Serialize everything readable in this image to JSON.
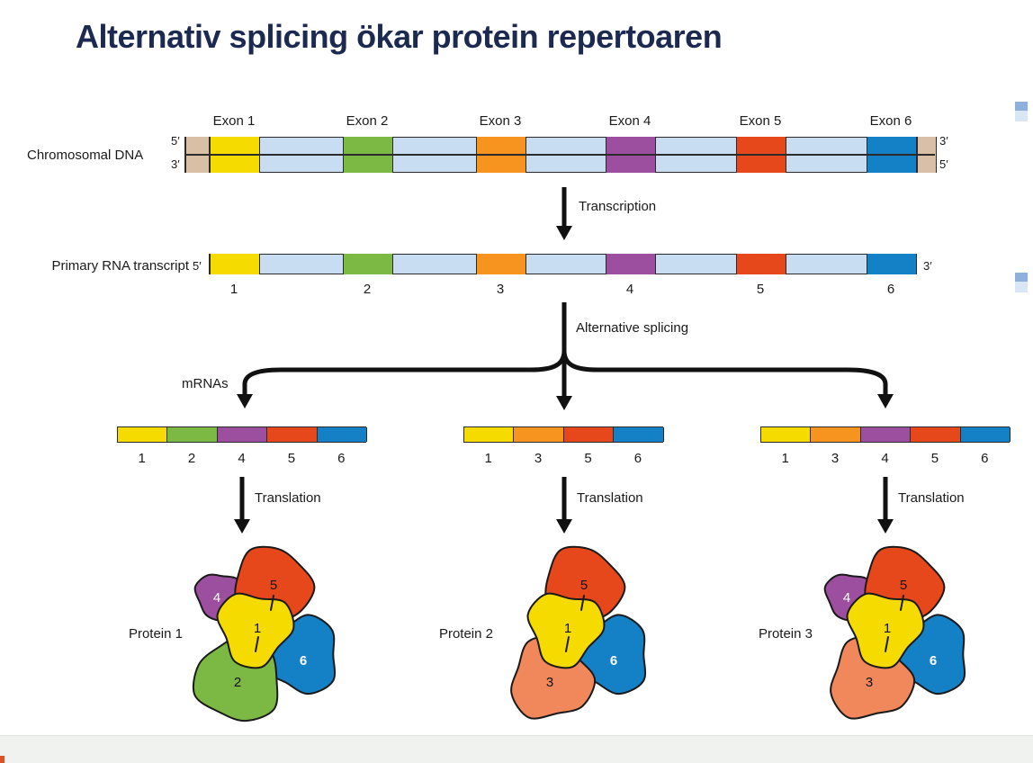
{
  "title": "Alternativ splicing ökar protein repertoaren",
  "colors": {
    "exon_1": "#F6DB00",
    "exon_2": "#7CB844",
    "exon_3": "#F79420",
    "exon_4": "#9C4F9E",
    "exon_5": "#E6481C",
    "exon_6": "#1480C6",
    "protein_3": "#F0885C",
    "intron": "#C9DDF2",
    "dna_end": "#D9C0A5",
    "title": "#1C2A52"
  },
  "dna": {
    "label": "Chromosomal DNA",
    "five_prime_left": "5′",
    "three_prime_left": "3′",
    "three_prime_right": "3′",
    "five_prime_right": "5′",
    "exon_labels": [
      "Exon 1",
      "Exon 2",
      "Exon 3",
      "Exon 4",
      "Exon 5",
      "Exon 6"
    ]
  },
  "transcription": {
    "label": "Transcription"
  },
  "rna": {
    "label": "Primary RNA transcript",
    "five_prime": "5′",
    "three_prime": "3′",
    "exon_numbers": [
      "1",
      "2",
      "3",
      "4",
      "5",
      "6"
    ]
  },
  "splicing": {
    "label": "Alternative splicing"
  },
  "mrnas": {
    "label": "mRNAs",
    "variants": [
      {
        "exons": [
          "1",
          "2",
          "4",
          "5",
          "6"
        ]
      },
      {
        "exons": [
          "1",
          "3",
          "5",
          "6"
        ]
      },
      {
        "exons": [
          "1",
          "3",
          "4",
          "5",
          "6"
        ]
      }
    ]
  },
  "translation": {
    "label": "Translation"
  },
  "proteins": [
    {
      "label": "Protein 1",
      "subunits": [
        "1",
        "2",
        "4",
        "5",
        "6"
      ]
    },
    {
      "label": "Protein 2",
      "subunits": [
        "1",
        "3",
        "5",
        "6"
      ]
    },
    {
      "label": "Protein 3",
      "subunits": [
        "1",
        "3",
        "4",
        "5",
        "6"
      ]
    }
  ]
}
